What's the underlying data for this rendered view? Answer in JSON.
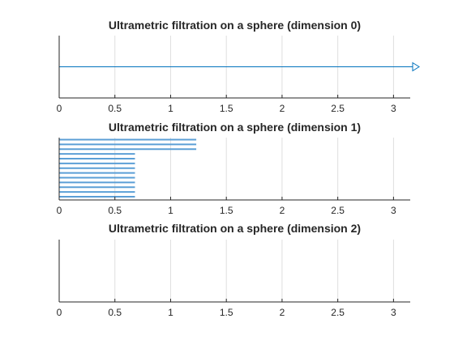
{
  "colors": {
    "series": "#0072bd",
    "barcode": "#5b9fd6",
    "axis": "#262626",
    "grid": "#dfdfdf",
    "background": "#ffffff"
  },
  "chart_data": [
    {
      "type": "barcode",
      "title": "Ultrametric filtration on a sphere (dimension 0)",
      "xlim": [
        0,
        3.15
      ],
      "xticks": [
        0,
        0.5,
        1,
        1.5,
        2,
        2.5,
        3
      ],
      "xtick_labels": [
        "0",
        "0.5",
        "1",
        "1.5",
        "2",
        "2.5",
        "3"
      ],
      "grid_x": true,
      "bars": [
        {
          "start": 0,
          "end": "infinite"
        }
      ]
    },
    {
      "type": "barcode",
      "title": "Ultrametric filtration on a sphere (dimension 1)",
      "xlim": [
        0,
        3.15
      ],
      "xticks": [
        0,
        0.5,
        1,
        1.5,
        2,
        2.5,
        3
      ],
      "xtick_labels": [
        "0",
        "0.5",
        "1",
        "1.5",
        "2",
        "2.5",
        "3"
      ],
      "grid_x": true,
      "bars": [
        {
          "start": 0,
          "end": 1.23
        },
        {
          "start": 0,
          "end": 1.23
        },
        {
          "start": 0,
          "end": 1.23
        },
        {
          "start": 0,
          "end": 0.68
        },
        {
          "start": 0,
          "end": 0.68
        },
        {
          "start": 0,
          "end": 0.68
        },
        {
          "start": 0,
          "end": 0.68
        },
        {
          "start": 0,
          "end": 0.68
        },
        {
          "start": 0,
          "end": 0.68
        },
        {
          "start": 0,
          "end": 0.68
        },
        {
          "start": 0,
          "end": 0.68
        },
        {
          "start": 0,
          "end": 0.68
        },
        {
          "start": 0,
          "end": 0.68
        }
      ]
    },
    {
      "type": "barcode",
      "title": "Ultrametric filtration on a sphere (dimension 2)",
      "xlim": [
        0,
        3.15
      ],
      "xticks": [
        0,
        0.5,
        1,
        1.5,
        2,
        2.5,
        3
      ],
      "xtick_labels": [
        "0",
        "0.5",
        "1",
        "1.5",
        "2",
        "2.5",
        "3"
      ],
      "grid_x": true,
      "bars": []
    }
  ]
}
